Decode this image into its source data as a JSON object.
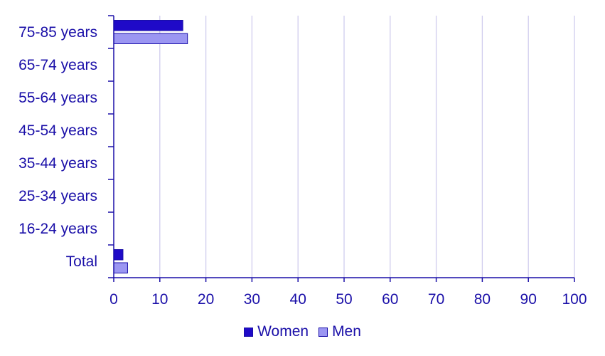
{
  "chart_data": {
    "type": "bar",
    "orientation": "horizontal",
    "title": "",
    "xlabel": "",
    "ylabel": "",
    "categories": [
      "75-85 years",
      "65-74 years",
      "55-64 years",
      "45-54 years",
      "35-44 years",
      "25-34 years",
      "16-24 years",
      "Total"
    ],
    "series": [
      {
        "name": "Women",
        "color": "#1f0ac8",
        "values": [
          15,
          0,
          0,
          0,
          0,
          0,
          0,
          2
        ]
      },
      {
        "name": "Men",
        "color": "#9b96f2",
        "values": [
          16,
          0,
          0,
          0,
          0,
          0,
          0,
          3
        ]
      }
    ],
    "xlim": [
      0,
      100
    ],
    "xticks": [
      "0",
      "10",
      "20",
      "30",
      "40",
      "50",
      "60",
      "70",
      "80",
      "90",
      "100"
    ],
    "grid": "vertical",
    "legend_position": "bottom-center",
    "colors": {
      "text": "#1a0fa8",
      "axis": "#1a0fa8",
      "grid": "#d0cdee"
    }
  }
}
